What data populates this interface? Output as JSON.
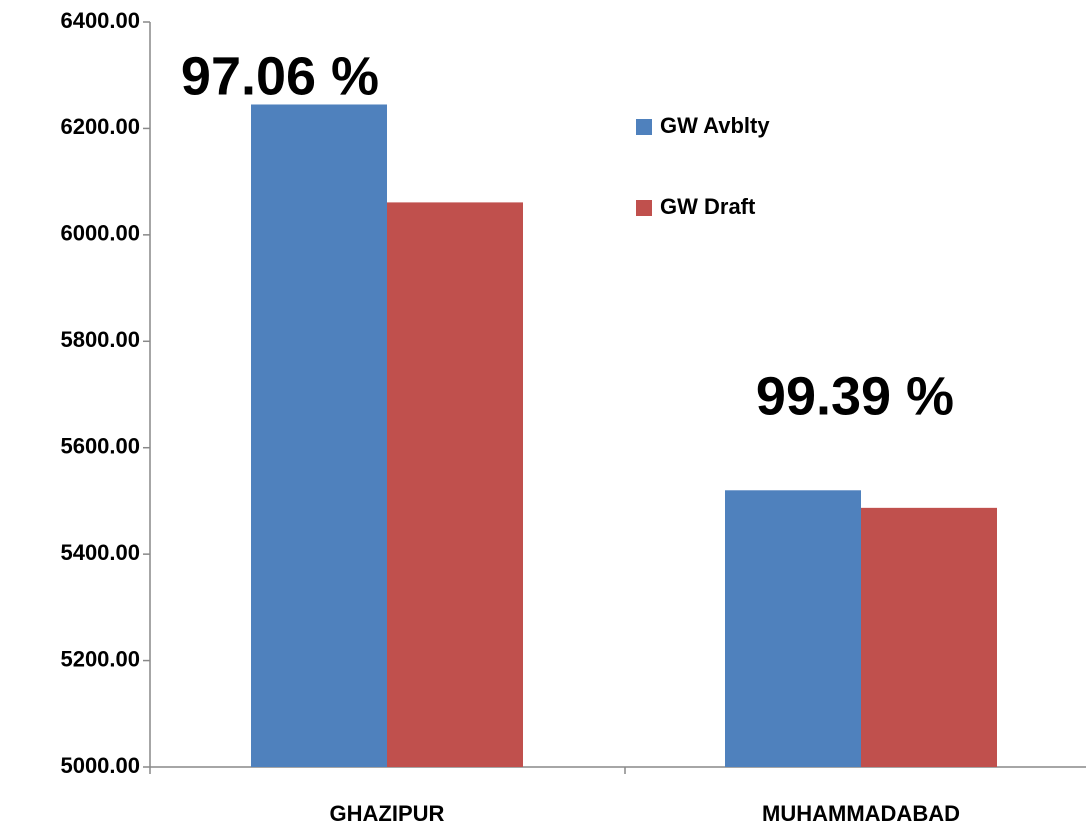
{
  "chart_data": {
    "type": "bar",
    "categories": [
      "GHAZIPUR",
      "MUHAMMADABAD"
    ],
    "series": [
      {
        "name": "GW Avblty",
        "color": "#4f81bd",
        "values": [
          6245,
          5520
        ]
      },
      {
        "name": "GW Draft",
        "color": "#c0504d",
        "values": [
          6061,
          5487
        ]
      }
    ],
    "annotations": [
      "97.06 %",
      "99.39 %"
    ],
    "ylim": [
      5000,
      6400
    ],
    "yticks": [
      {
        "value": 5000,
        "label": "5000.00"
      },
      {
        "value": 5200,
        "label": "5200.00"
      },
      {
        "value": 5400,
        "label": "5400.00"
      },
      {
        "value": 5600,
        "label": "5600.00"
      },
      {
        "value": 5800,
        "label": "5800.00"
      },
      {
        "value": 6000,
        "label": "6000.00"
      },
      {
        "value": 6200,
        "label": "6200.00"
      },
      {
        "value": 6400,
        "label": "6400.00"
      }
    ],
    "legend": "upper right",
    "grid": false
  }
}
